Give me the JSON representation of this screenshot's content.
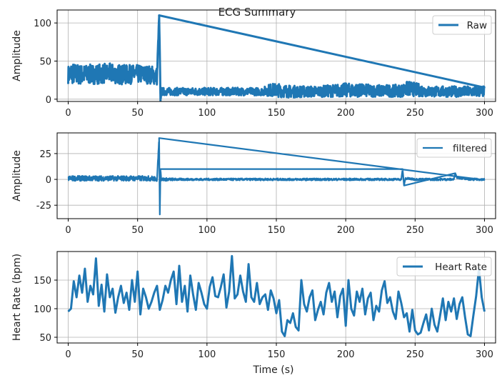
{
  "chart_data": {
    "type": "line",
    "title": "ECG Summary",
    "accent_color": "#1f77b4",
    "grid": true,
    "subplots": [
      {
        "ylabel": "Amplitude",
        "legend": "Raw",
        "legend_position": "top-right",
        "xlim": [
          -8,
          308
        ],
        "ylim": [
          -3,
          117
        ],
        "xticks": [
          0,
          50,
          100,
          150,
          200,
          250,
          300
        ],
        "yticks": [
          0,
          50,
          100
        ],
        "series": [
          {
            "name": "Raw",
            "x": [
              0,
              2,
              5,
              10,
              20,
              30,
              40,
              50,
              60,
              64,
              65.5,
              66,
              66.5,
              67,
              70,
              80,
              100,
              120,
              140,
              145,
              150,
              160,
              180,
              200,
              220,
              240,
              245,
              260,
              280,
              300
            ],
            "y": [
              32,
              34,
              33,
              32,
              33,
              34,
              32,
              33,
              32,
              30,
              110,
              62,
              -3,
              10,
              10,
              10,
              10,
              10,
              10,
              12,
              12,
              10,
              10,
              12,
              11,
              11,
              14,
              10,
              10,
              10
            ],
            "band": [
              12,
              14,
              14,
              13,
              13,
              13,
              13,
              12,
              12,
              12,
              0,
              0,
              0,
              5,
              5,
              5,
              5,
              5,
              5,
              8,
              9,
              8,
              7,
              9,
              8,
              8,
              10,
              7,
              7,
              7
            ]
          }
        ]
      },
      {
        "ylabel": "Amplitude",
        "legend": "filtered",
        "legend_position": "top-right",
        "xlim": [
          -8,
          308
        ],
        "ylim": [
          -38,
          45
        ],
        "xticks": [
          0,
          50,
          100,
          150,
          200,
          250,
          300
        ],
        "yticks": [
          -25,
          0,
          25
        ],
        "series": [
          {
            "name": "filtered",
            "x": [
              0,
              10,
              20,
              30,
              40,
              50,
              60,
              64,
              65.5,
              66,
              66.5,
              67,
              70,
              80,
              100,
              120,
              140,
              160,
              180,
              200,
              220,
              240,
              241,
              242,
              243,
              250,
              270,
              278,
              279,
              280,
              290,
              300
            ],
            "y": [
              1,
              1,
              1,
              1,
              1,
              1,
              1,
              0,
              40,
              -34,
              10,
              0,
              0,
              0,
              0,
              0,
              0,
              0,
              0,
              0,
              0,
              0,
              10,
              -6,
              1,
              0,
              0,
              0,
              6,
              2,
              0,
              0
            ],
            "band": [
              2.5,
              2.5,
              2.5,
              2.5,
              2.5,
              2.5,
              2.5,
              2,
              0,
              0,
              0,
              1.5,
              1.5,
              1,
              1,
              1,
              1,
              1,
              1,
              1,
              1,
              1,
              0,
              0,
              1,
              1,
              1,
              1,
              0,
              1,
              1,
              1
            ]
          }
        ]
      },
      {
        "ylabel": "Heart Rate (bpm)",
        "xlabel": "Time (s)",
        "legend": "Heart Rate",
        "legend_position": "top-right",
        "xlim": [
          -8,
          308
        ],
        "ylim": [
          40,
          200
        ],
        "xticks": [
          0,
          50,
          100,
          150,
          200,
          250,
          300
        ],
        "yticks": [
          50,
          100,
          150
        ],
        "series": [
          {
            "name": "Heart Rate",
            "x": [
              0,
              2,
              4,
              6,
              8,
              10,
              12,
              14,
              16,
              18,
              20,
              22,
              24,
              26,
              28,
              30,
              32,
              34,
              36,
              38,
              40,
              42,
              44,
              46,
              48,
              50,
              52,
              54,
              56,
              58,
              60,
              62,
              64,
              66,
              68,
              70,
              72,
              74,
              76,
              78,
              80,
              82,
              84,
              86,
              88,
              90,
              92,
              94,
              96,
              98,
              100,
              102,
              104,
              106,
              108,
              110,
              112,
              114,
              116,
              118,
              120,
              122,
              124,
              126,
              128,
              130,
              132,
              134,
              136,
              138,
              140,
              142,
              144,
              146,
              148,
              150,
              152,
              154,
              156,
              158,
              160,
              162,
              164,
              166,
              168,
              170,
              172,
              174,
              176,
              178,
              180,
              182,
              184,
              186,
              188,
              190,
              192,
              194,
              196,
              198,
              200,
              202,
              204,
              206,
              208,
              210,
              212,
              214,
              216,
              218,
              220,
              222,
              224,
              226,
              228,
              230,
              232,
              234,
              236,
              238,
              240,
              242,
              244,
              246,
              248,
              250,
              252,
              254,
              256,
              258,
              260,
              262,
              264,
              266,
              268,
              270,
              272,
              274,
              276,
              278,
              280,
              282,
              284,
              286,
              288,
              290,
              292,
              294,
              296,
              298,
              300
            ],
            "y": [
              95,
              100,
              148,
              120,
              158,
              128,
              170,
              112,
              140,
              125,
              188,
              105,
              142,
              95,
              160,
              120,
              135,
              93,
              120,
              140,
              110,
              128,
              98,
              150,
              112,
              165,
              90,
              135,
              120,
              100,
              112,
              128,
              140,
              98,
              115,
              140,
              128,
              150,
              165,
              108,
              175,
              112,
              140,
              95,
              158,
              125,
              98,
              145,
              128,
              108,
              100,
              138,
              155,
              122,
              120,
              138,
              160,
              102,
              130,
              192,
              118,
              125,
              158,
              130,
              112,
              178,
              120,
              112,
              145,
              108,
              120,
              125,
              98,
              132,
              118,
              92,
              115,
              60,
              52,
              80,
              75,
              92,
              68,
              62,
              150,
              108,
              95,
              120,
              132,
              80,
              98,
              112,
              90,
              128,
              145,
              112,
              130,
              85,
              122,
              135,
              70,
              150,
              100,
              88,
              130,
              112,
              135,
              90,
              118,
              128,
              80,
              105,
              95,
              132,
              148,
              110,
              120,
              95,
              82,
              130,
              110,
              85,
              92,
              60,
              98,
              62,
              55,
              58,
              75,
              90,
              62,
              100,
              72,
              60,
              88,
              118,
              80,
              112,
              95,
              118,
              82,
              108,
              120,
              85,
              55,
              52,
              88,
              122,
              170,
              120,
              95
            ]
          }
        ]
      }
    ]
  }
}
